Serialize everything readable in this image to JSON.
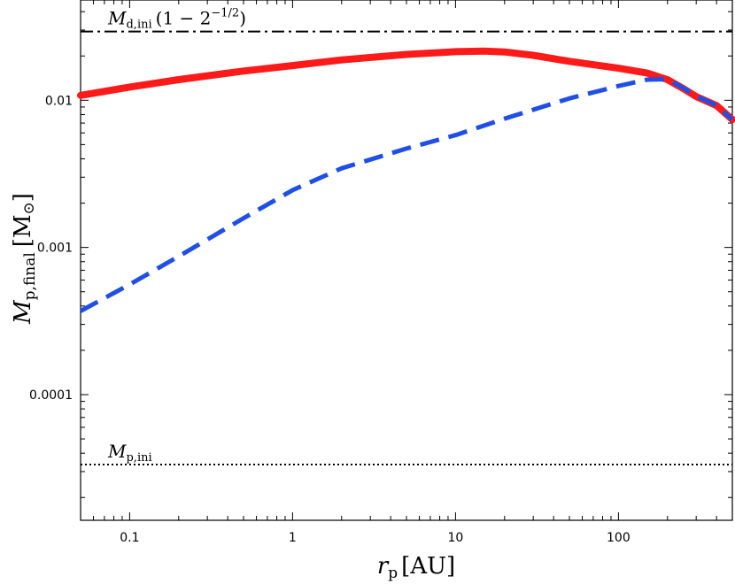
{
  "chart_data": {
    "type": "line",
    "xscale": "log",
    "yscale": "log",
    "xlim": [
      0.05,
      500
    ],
    "ylim": [
      1.4e-05,
      0.048
    ],
    "grid": false,
    "x_ticks": [
      {
        "value": 0.1,
        "label": "0.1"
      },
      {
        "value": 1,
        "label": "1"
      },
      {
        "value": 10,
        "label": "10"
      },
      {
        "value": 100,
        "label": "100"
      }
    ],
    "y_ticks": [
      {
        "value": 0.0001,
        "label": "0.0001"
      },
      {
        "value": 0.001,
        "label": "0.001"
      },
      {
        "value": 0.01,
        "label": "0.01"
      }
    ],
    "xlabel": {
      "main": "r",
      "sub": "p",
      "unit": "[AU]"
    },
    "ylabel": {
      "main": "M",
      "sub": "p,final",
      "unit": "[M",
      "unit_sub": "⊙",
      "unit_end": "]"
    },
    "reference_lines": [
      {
        "y": 0.0293,
        "style": "dashdot",
        "color": "#000000",
        "label_main": "M",
        "label_sub": "d,ini",
        "label_rest": "(1 − 2",
        "label_sup": "−1/2",
        "label_end": ")"
      },
      {
        "y": 3.35e-05,
        "style": "dotted",
        "color": "#000000",
        "label_main": "M",
        "label_sub": "p,ini"
      }
    ],
    "series": [
      {
        "style": "solid",
        "color": "#ff1a1a",
        "x": [
          0.05,
          0.1,
          0.2,
          0.5,
          1,
          2,
          5,
          10,
          15,
          20,
          30,
          50,
          100,
          150,
          200,
          250,
          300,
          400,
          500
        ],
        "y": [
          0.0108,
          0.0123,
          0.0138,
          0.0158,
          0.0172,
          0.0188,
          0.0205,
          0.0214,
          0.0216,
          0.0213,
          0.0202,
          0.0184,
          0.0165,
          0.0153,
          0.0138,
          0.012,
          0.0106,
          0.0092,
          0.0074
        ]
      },
      {
        "style": "dashed",
        "color": "#1f4fe6",
        "x": [
          0.05,
          0.1,
          0.2,
          0.5,
          1,
          2,
          5,
          10,
          20,
          50,
          100,
          150,
          200,
          250,
          300,
          400,
          500
        ],
        "y": [
          0.00037,
          0.00056,
          0.00087,
          0.00158,
          0.00245,
          0.00345,
          0.0047,
          0.0058,
          0.0075,
          0.0103,
          0.0125,
          0.0138,
          0.0139,
          0.0121,
          0.0107,
          0.0092,
          0.0074
        ]
      }
    ]
  }
}
